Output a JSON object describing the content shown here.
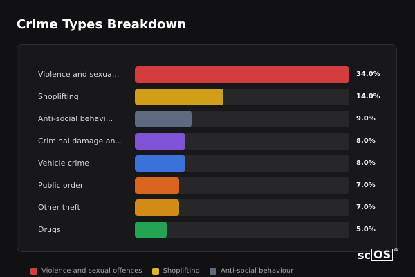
{
  "title": "Crime Types Breakdown",
  "chart_data": {
    "type": "bar",
    "orientation": "horizontal",
    "title": "Crime Types Breakdown",
    "xlim": [
      0,
      34
    ],
    "categories": [
      "Violence and sexua...",
      "Shoplifting",
      "Anti-social behavi...",
      "Criminal damage an...",
      "Vehicle crime",
      "Public order",
      "Other theft",
      "Drugs"
    ],
    "values": [
      34.0,
      14.0,
      9.0,
      8.0,
      8.0,
      7.0,
      7.0,
      5.0
    ],
    "value_labels": [
      "34.0%",
      "14.0%",
      "9.0%",
      "8.0%",
      "8.0%",
      "7.0%",
      "7.0%",
      "5.0%"
    ],
    "colors": [
      "#d43d3d",
      "#d19e1a",
      "#5e6a7d",
      "#7f52d6",
      "#3a72d8",
      "#d9651e",
      "#d38a16",
      "#23a455"
    ],
    "legend_position": "bottom",
    "grid": false
  },
  "legend": [
    {
      "label": "Violence and sexual offences",
      "color": "#d43d3d"
    },
    {
      "label": "Shoplifting",
      "color": "#e0b52a"
    },
    {
      "label": "Anti-social behaviour",
      "color": "#5e6a7d"
    }
  ],
  "logo": {
    "prefix": "sc",
    "boxed": "OS",
    "mark": "®"
  }
}
